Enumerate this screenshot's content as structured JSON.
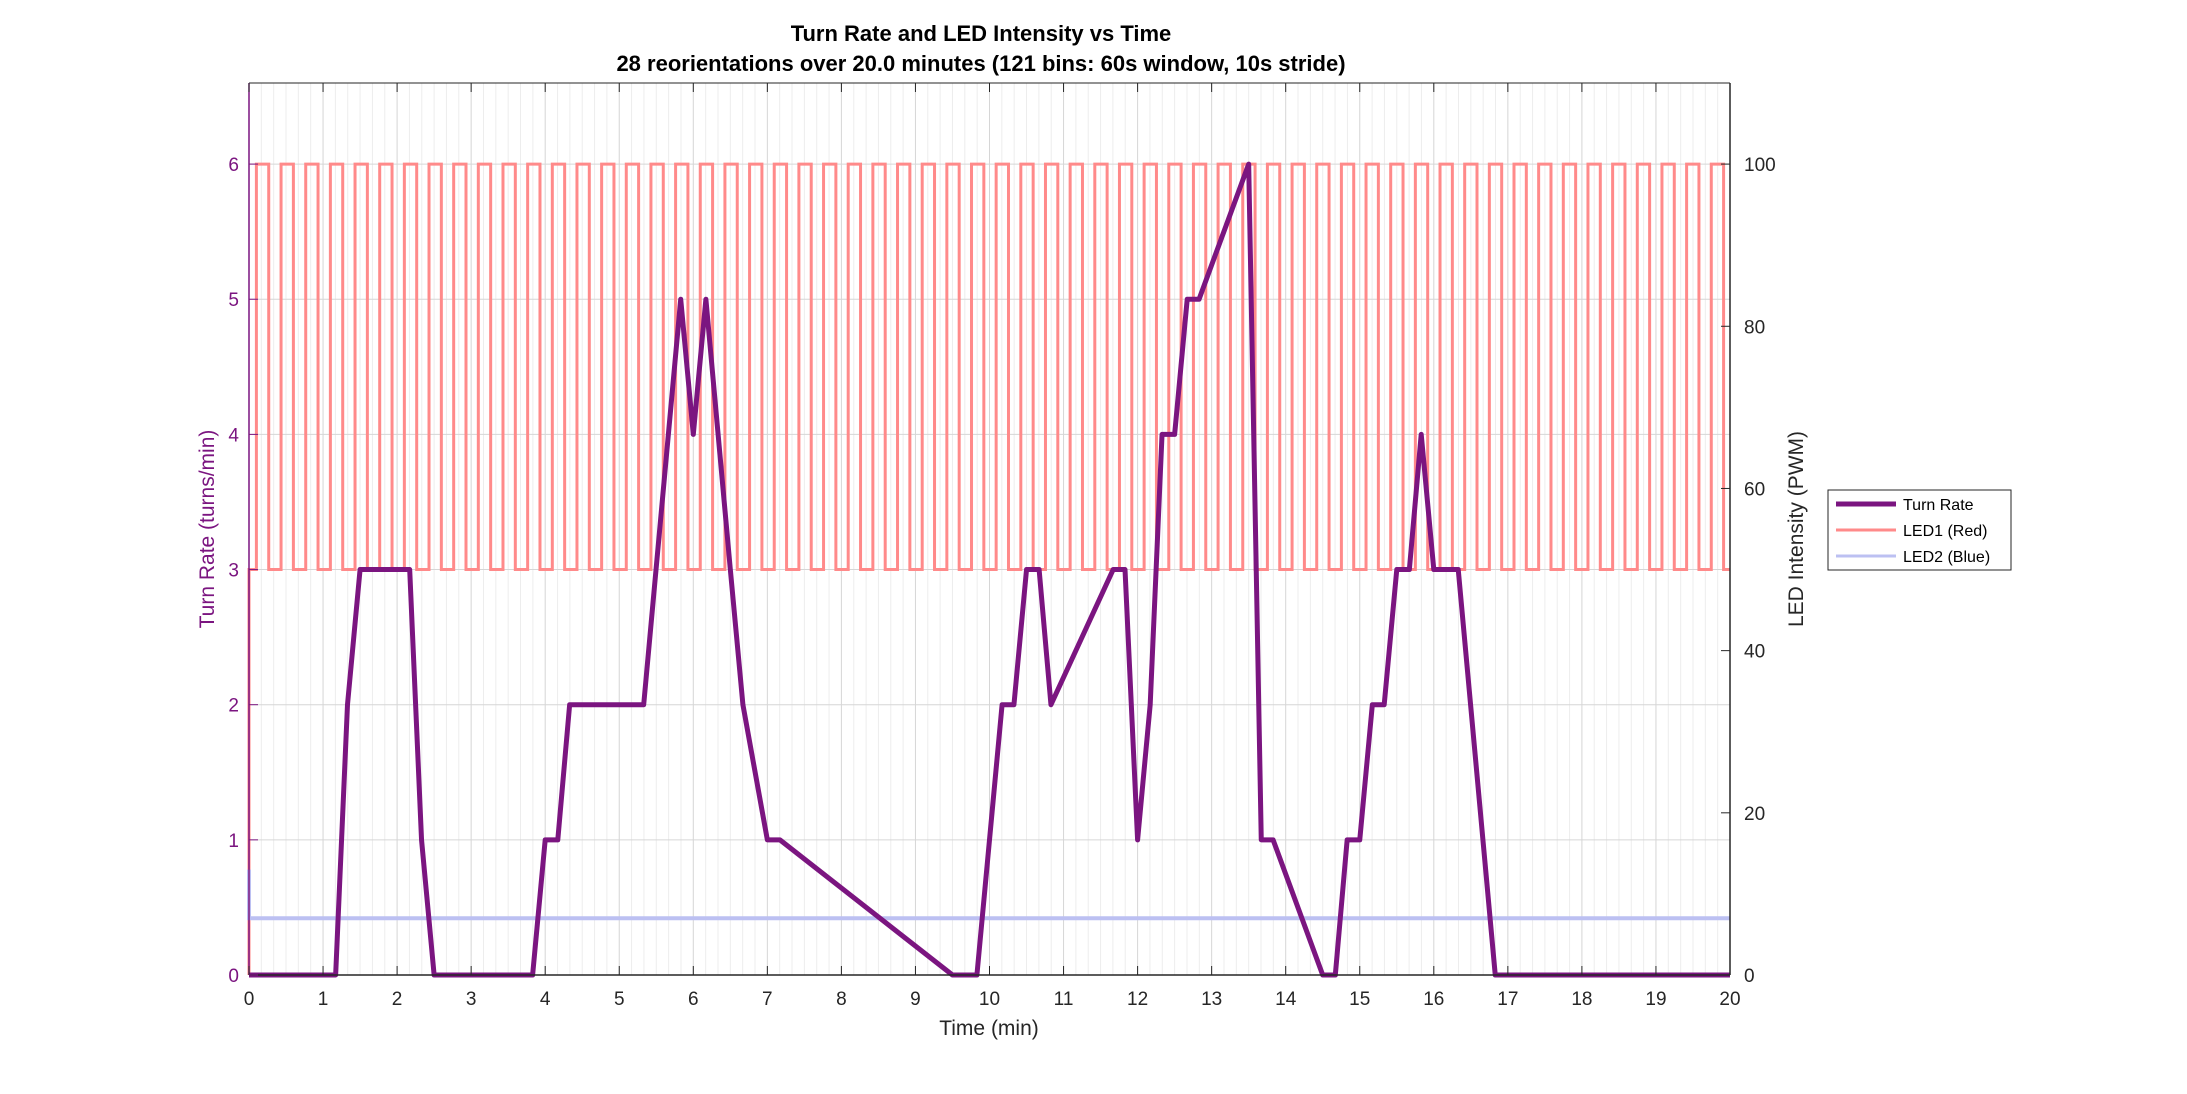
{
  "chart_data": {
    "type": "line",
    "title": "Turn Rate and LED Intensity vs Time",
    "subtitle": "28 reorientations over 20.0 minutes (121 bins: 60s window, 10s stride)",
    "xlabel": "Time (min)",
    "ylabel_left": "Turn Rate (turns/min)",
    "ylabel_right": "LED Intensity (PWM)",
    "xlim": [
      0,
      20
    ],
    "ylim_left": [
      0,
      6.6
    ],
    "ylim_right": [
      0,
      110
    ],
    "x_ticks": [
      "0",
      "1",
      "2",
      "3",
      "4",
      "5",
      "6",
      "7",
      "8",
      "9",
      "10",
      "11",
      "12",
      "13",
      "14",
      "15",
      "16",
      "17",
      "18",
      "19",
      "20"
    ],
    "y_left_ticks": [
      "0",
      "1",
      "2",
      "3",
      "4",
      "5",
      "6"
    ],
    "y_right_ticks": [
      "0",
      "20",
      "40",
      "60",
      "80",
      "100"
    ],
    "grid": true,
    "legend_position": "right",
    "colors": {
      "turn_rate": "#7b1580",
      "led1": "#ff8a8a",
      "led2": "#bcc0f2",
      "left_axis": "#7b1580",
      "right_axis": "#000000",
      "grid": "#d6d6d6"
    },
    "series": [
      {
        "name": "Turn Rate",
        "axis": "left",
        "x": [
          0,
          1.17,
          1.33,
          1.5,
          1.67,
          2.17,
          2.33,
          2.5,
          3.83,
          4.0,
          4.17,
          4.33,
          5.33,
          5.83,
          6.0,
          6.17,
          6.5,
          6.67,
          7.0,
          7.17,
          9.5,
          9.83,
          10.17,
          10.33,
          10.5,
          10.67,
          10.83,
          11.67,
          11.83,
          12.0,
          12.17,
          12.33,
          12.5,
          12.67,
          12.83,
          13.5,
          13.67,
          13.83,
          14.5,
          14.67,
          14.83,
          15.0,
          15.17,
          15.33,
          15.5,
          15.67,
          15.83,
          16.0,
          16.33,
          16.83,
          17.0,
          20.0
        ],
        "y": [
          0,
          0,
          2,
          3,
          3,
          3,
          1,
          0,
          0,
          1,
          1,
          2,
          2,
          5,
          4,
          5,
          3,
          2,
          1,
          1,
          0,
          0,
          2,
          2,
          3,
          3,
          2,
          3,
          3,
          1,
          2,
          4,
          4,
          5,
          5,
          6,
          1,
          1,
          0,
          0,
          1,
          1,
          2,
          2,
          3,
          3,
          4,
          3,
          3,
          0,
          0,
          0
        ]
      },
      {
        "name": "LED1 (Red)",
        "axis": "right",
        "pattern": "square_wave",
        "low": 50,
        "high": 100,
        "period_min": 0.333,
        "phase_min": 0.1,
        "initial": 0
      },
      {
        "name": "LED2 (Blue)",
        "axis": "right",
        "constant": 7,
        "initial": 13
      }
    ],
    "legend": [
      "Turn Rate",
      "LED1 (Red)",
      "LED2 (Blue)"
    ]
  }
}
